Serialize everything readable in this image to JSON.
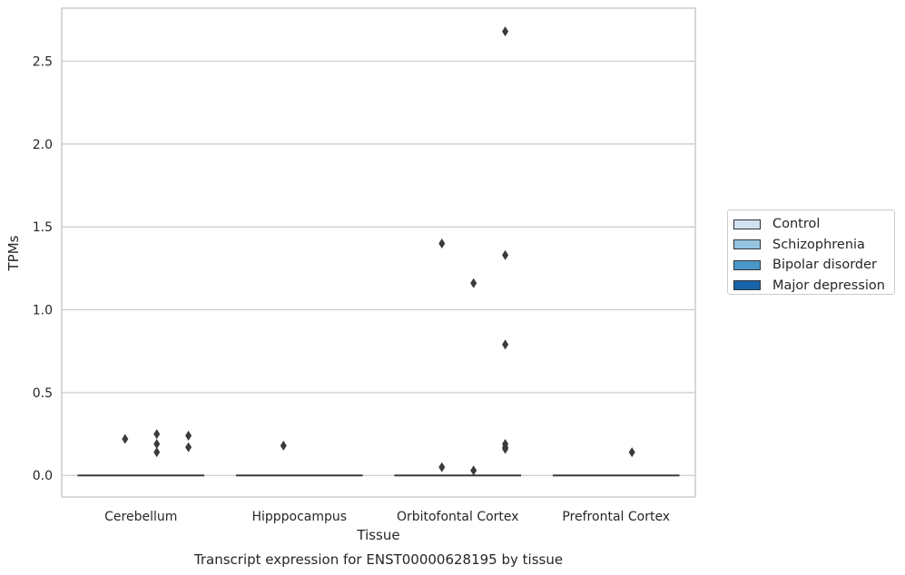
{
  "chart_data": {
    "type": "box",
    "title": "Transcript expression for ENST00000628195 by tissue",
    "xlabel": "Tissue",
    "ylabel": "TPMs",
    "categories": [
      "Cerebellum",
      "Hipppocampus",
      "Orbitofontal Cortex",
      "Prefrontal Cortex"
    ],
    "ylim": [
      -0.13,
      2.82
    ],
    "yticks": [
      "0.0",
      "0.5",
      "1.0",
      "1.5",
      "2.0",
      "2.5"
    ],
    "ytick_values": [
      0.0,
      0.5,
      1.0,
      1.5,
      2.0,
      2.5
    ],
    "grid": true,
    "legend_position": "right",
    "series": [
      {
        "name": "Control",
        "color": "#d0e1f2"
      },
      {
        "name": "Schizophrenia",
        "color": "#94c4df"
      },
      {
        "name": "Bipolar disorder",
        "color": "#4a98c9"
      },
      {
        "name": "Major depression",
        "color": "#1764ab"
      }
    ],
    "medians": [
      0.0,
      0.0,
      0.0,
      0.0
    ],
    "outliers": [
      {
        "category": "Cerebellum",
        "series": "Schizophrenia",
        "values": [
          0.22
        ]
      },
      {
        "category": "Cerebellum",
        "series": "Bipolar disorder",
        "values": [
          0.25,
          0.19,
          0.14
        ]
      },
      {
        "category": "Cerebellum",
        "series": "Major depression",
        "values": [
          0.24,
          0.17
        ]
      },
      {
        "category": "Hipppocampus",
        "series": "Schizophrenia",
        "values": [
          0.18
        ]
      },
      {
        "category": "Orbitofontal Cortex",
        "series": "Schizophrenia",
        "values": [
          1.4,
          0.05
        ]
      },
      {
        "category": "Orbitofontal Cortex",
        "series": "Bipolar disorder",
        "values": [
          1.16,
          0.03
        ]
      },
      {
        "category": "Orbitofontal Cortex",
        "series": "Major depression",
        "values": [
          1.33,
          0.79,
          0.19,
          0.17,
          0.16
        ]
      },
      {
        "category": "Orbitofontal Cortex",
        "series": "Major depression",
        "values": [
          2.68
        ]
      },
      {
        "category": "Prefrontal Cortex",
        "series": "Bipolar disorder",
        "values": [
          0.14
        ]
      }
    ]
  }
}
